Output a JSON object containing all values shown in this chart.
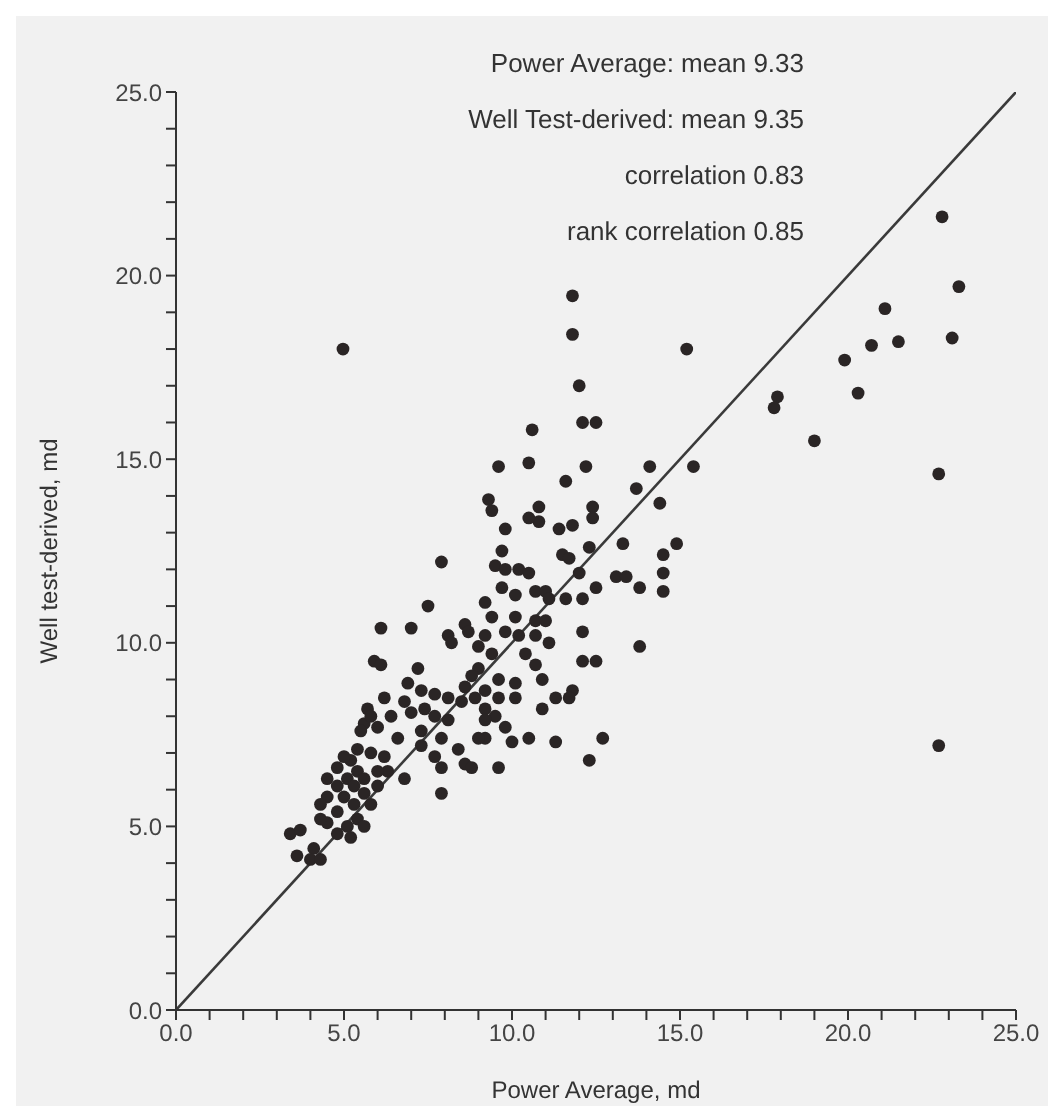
{
  "chart_data": {
    "type": "scatter",
    "xlabel": "Power Average, md",
    "ylabel": "Well test-derived, md",
    "annotations": [
      "Power Average: mean 9.33",
      "Well Test-derived: mean 9.35",
      "correlation 0.83",
      "rank correlation 0.85"
    ],
    "xlim": [
      0,
      25
    ],
    "ylim": [
      0,
      25
    ],
    "xticks": [
      {
        "value": 0,
        "label": "0.0"
      },
      {
        "value": 1,
        "label": null
      },
      {
        "value": 2,
        "label": null
      },
      {
        "value": 3,
        "label": null
      },
      {
        "value": 4,
        "label": null
      },
      {
        "value": 5,
        "label": "5.0"
      },
      {
        "value": 6,
        "label": null
      },
      {
        "value": 7,
        "label": null
      },
      {
        "value": 8,
        "label": null
      },
      {
        "value": 9,
        "label": null
      },
      {
        "value": 10,
        "label": "10.0"
      },
      {
        "value": 11,
        "label": null
      },
      {
        "value": 12,
        "label": null
      },
      {
        "value": 13,
        "label": null
      },
      {
        "value": 14,
        "label": null
      },
      {
        "value": 15,
        "label": "15.0"
      },
      {
        "value": 16,
        "label": null
      },
      {
        "value": 17,
        "label": null
      },
      {
        "value": 18,
        "label": null
      },
      {
        "value": 19,
        "label": null
      },
      {
        "value": 20,
        "label": "20.0"
      },
      {
        "value": 21,
        "label": null
      },
      {
        "value": 22,
        "label": null
      },
      {
        "value": 23,
        "label": null
      },
      {
        "value": 24,
        "label": null
      },
      {
        "value": 25,
        "label": "25.0"
      }
    ],
    "yticks": [
      {
        "value": 0,
        "label": "0.0"
      },
      {
        "value": 1,
        "label": null
      },
      {
        "value": 2,
        "label": null
      },
      {
        "value": 3,
        "label": null
      },
      {
        "value": 4,
        "label": null
      },
      {
        "value": 5,
        "label": "5.0"
      },
      {
        "value": 6,
        "label": null
      },
      {
        "value": 7,
        "label": null
      },
      {
        "value": 8,
        "label": null
      },
      {
        "value": 9,
        "label": null
      },
      {
        "value": 10,
        "label": "10.0"
      },
      {
        "value": 11,
        "label": null
      },
      {
        "value": 12,
        "label": null
      },
      {
        "value": 13,
        "label": null
      },
      {
        "value": 14,
        "label": null
      },
      {
        "value": 15,
        "label": "15.0"
      },
      {
        "value": 16,
        "label": null
      },
      {
        "value": 17,
        "label": null
      },
      {
        "value": 18,
        "label": null
      },
      {
        "value": 19,
        "label": null
      },
      {
        "value": 20,
        "label": "20.0"
      },
      {
        "value": 21,
        "label": null
      },
      {
        "value": 22,
        "label": null
      },
      {
        "value": 23,
        "label": null
      },
      {
        "value": 24,
        "label": null
      },
      {
        "value": 25,
        "label": "25.0"
      }
    ],
    "grid": false,
    "legend": false,
    "series": [
      {
        "marker": "circle",
        "color": "#2a2525",
        "x": [
          4.97,
          11.8,
          11.8,
          12.0,
          15.2,
          22.8,
          23.3,
          23.1,
          21.1,
          21.5,
          20.7,
          19.9,
          20.3,
          17.9,
          17.8,
          19.0,
          22.7,
          22.7,
          10.6,
          12.1,
          12.5,
          9.6,
          10.5,
          12.2,
          11.6,
          14.1,
          13.7,
          15.4,
          14.4,
          14.9,
          14.5,
          14.5,
          14.5,
          13.3,
          13.1,
          13.4,
          13.8,
          13.8,
          12.5,
          12.3,
          12.4,
          12.4,
          11.4,
          11.8,
          11.5,
          11.7,
          12.0,
          12.1,
          11.6,
          12.1,
          12.1,
          12.5,
          11.8,
          11.7,
          11.3,
          10.9,
          11.3,
          12.3,
          12.7,
          10.5,
          10.0,
          9.6,
          9.2,
          10.8,
          10.8,
          10.5,
          9.3,
          9.4,
          9.8,
          9.7,
          9.5,
          9.8,
          10.2,
          10.5,
          9.7,
          10.1,
          10.7,
          11.0,
          11.1,
          9.2,
          10.1,
          10.7,
          11.0,
          9.4,
          9.2,
          9.8,
          10.2,
          10.7,
          11.1,
          9.0,
          9.4,
          10.4,
          10.7,
          10.9,
          10.1,
          9.0,
          9.6,
          9.2,
          9.6,
          10.1,
          9.2,
          9.5,
          9.2,
          9.8,
          9.0,
          7.9,
          7.5,
          8.1,
          8.2,
          7.0,
          6.1,
          5.9,
          6.1,
          7.2,
          8.6,
          8.7,
          6.2,
          6.9,
          7.3,
          7.7,
          8.1,
          8.6,
          8.8,
          8.5,
          8.9,
          6.8,
          7.0,
          7.4,
          7.7,
          8.1,
          6.4,
          5.7,
          5.6,
          6.0,
          6.6,
          7.3,
          7.9,
          8.4,
          8.6,
          8.8,
          7.7,
          7.9,
          7.9,
          7.3,
          6.8,
          6.2,
          6.3,
          6.0,
          5.8,
          5.4,
          5.2,
          5.0,
          4.8,
          4.5,
          4.8,
          5.1,
          5.4,
          5.6,
          5.3,
          5.6,
          5.0,
          4.5,
          4.3,
          4.8,
          5.3,
          5.4,
          5.1,
          4.5,
          4.3,
          4.8,
          5.6,
          5.2,
          3.4,
          3.7,
          3.6,
          4.1,
          4.0,
          4.3,
          5.5,
          5.8,
          5.8,
          6.0
        ],
        "values": [
          18.0,
          19.45,
          18.4,
          17.0,
          18.0,
          21.6,
          19.7,
          18.3,
          19.1,
          18.2,
          18.1,
          17.7,
          16.8,
          16.7,
          16.4,
          15.5,
          14.6,
          7.2,
          15.8,
          16.0,
          16.0,
          14.8,
          14.9,
          14.8,
          14.4,
          14.8,
          14.2,
          14.8,
          13.8,
          12.7,
          12.4,
          11.9,
          11.4,
          12.7,
          11.8,
          11.8,
          11.5,
          9.9,
          11.5,
          12.6,
          13.7,
          13.4,
          13.1,
          13.2,
          12.4,
          12.3,
          11.9,
          11.2,
          11.2,
          10.3,
          9.5,
          9.5,
          8.7,
          8.5,
          8.5,
          8.2,
          7.3,
          6.8,
          7.4,
          7.4,
          7.3,
          6.6,
          7.4,
          13.7,
          13.3,
          13.4,
          13.9,
          13.6,
          13.1,
          12.5,
          12.1,
          12.0,
          12.0,
          11.9,
          11.5,
          11.3,
          11.4,
          11.4,
          11.2,
          11.1,
          10.7,
          10.6,
          10.6,
          10.7,
          10.2,
          10.3,
          10.2,
          10.2,
          10.0,
          9.9,
          9.7,
          9.7,
          9.4,
          9.0,
          8.9,
          9.3,
          9.0,
          8.7,
          8.5,
          8.5,
          8.2,
          8.0,
          7.9,
          7.7,
          7.4,
          12.2,
          11.0,
          10.2,
          10.0,
          10.4,
          10.4,
          9.5,
          9.4,
          9.3,
          10.5,
          10.3,
          8.5,
          8.9,
          8.7,
          8.6,
          8.5,
          8.8,
          9.1,
          8.4,
          8.5,
          8.4,
          8.1,
          8.2,
          8.0,
          7.9,
          8.0,
          8.2,
          7.8,
          7.7,
          7.4,
          7.6,
          7.4,
          7.1,
          6.7,
          6.6,
          6.9,
          6.6,
          5.9,
          7.2,
          6.3,
          6.9,
          6.5,
          6.1,
          7.0,
          7.1,
          6.8,
          6.9,
          6.6,
          6.3,
          6.1,
          6.3,
          6.5,
          6.3,
          6.1,
          5.9,
          5.8,
          5.8,
          5.6,
          5.4,
          5.6,
          5.2,
          5.0,
          5.1,
          5.2,
          4.8,
          5.0,
          4.7,
          4.8,
          4.9,
          4.2,
          4.4,
          4.1,
          4.1,
          7.6,
          8.0,
          5.6,
          6.5
        ]
      },
      {
        "type": "line",
        "color": "#3a3a3a",
        "x": [
          0,
          25
        ],
        "values": [
          0,
          25
        ]
      }
    ]
  }
}
